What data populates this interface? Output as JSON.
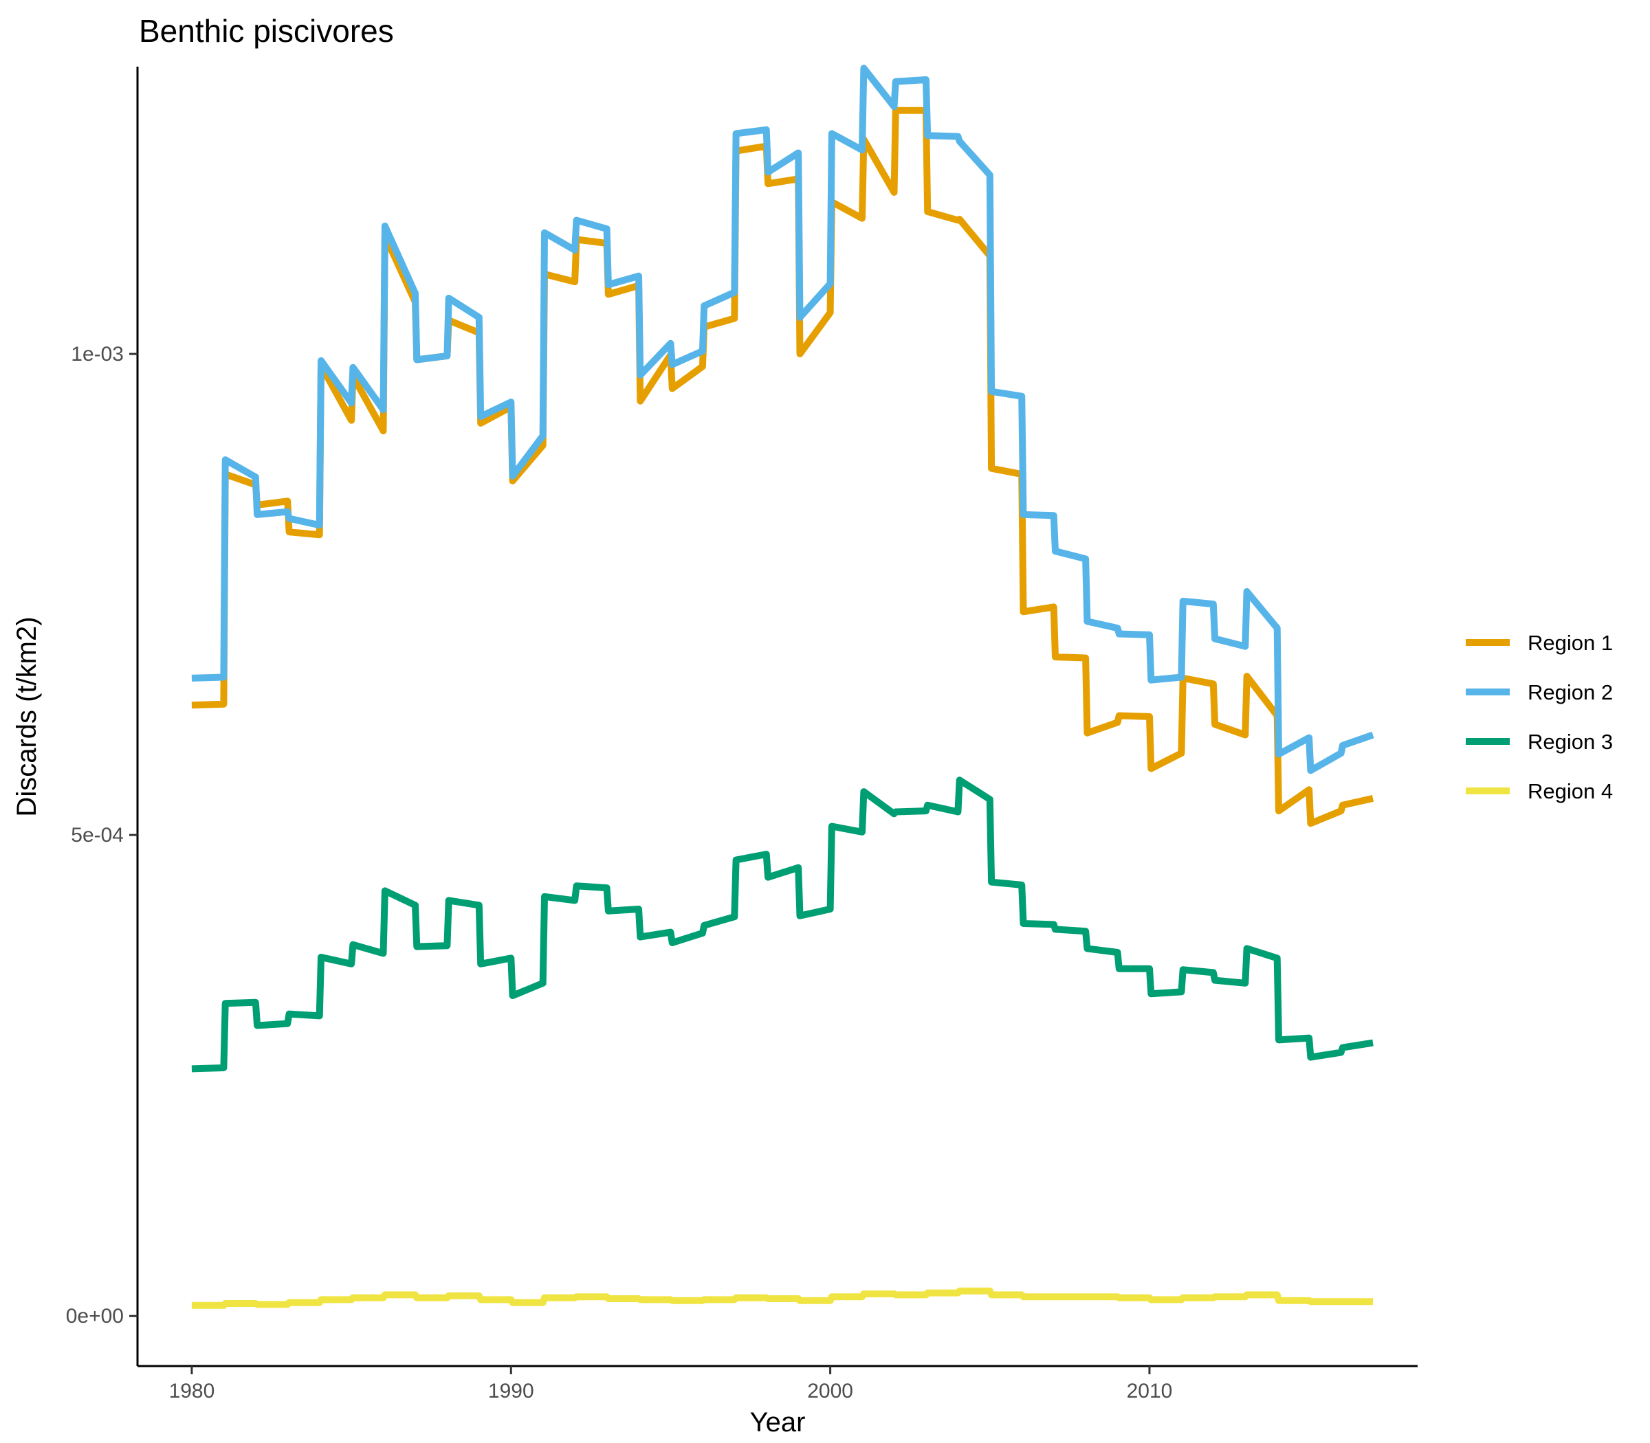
{
  "chart_data": {
    "type": "line",
    "title": "Benthic piscivores",
    "xlabel": "Year",
    "ylabel": "Discards (t/km2)",
    "xlim": [
      1978.3,
      2018.4
    ],
    "ylim": [
      -5.199e-05,
      0.0012986
    ],
    "xticks": [
      1980,
      1990,
      2000,
      2010
    ],
    "xtick_labels": [
      "1980",
      "1990",
      "2000",
      "2010"
    ],
    "yticks": [
      0,
      0.0005,
      0.001
    ],
    "ytick_labels": [
      "0e+00",
      "5e-04",
      "1e-03"
    ],
    "grid": false,
    "legend_position": "right",
    "series": [
      {
        "name": "Region 1",
        "color": "#E69F00",
        "x": [
          1980.0,
          1981.0,
          1981.05,
          1982.0,
          1982.05,
          1983.0,
          1983.05,
          1984.0,
          1984.05,
          1985.0,
          1985.05,
          1986.0,
          1986.05,
          1987.0,
          1987.05,
          1988.0,
          1988.05,
          1989.0,
          1989.05,
          1990.0,
          1990.05,
          1991.0,
          1991.05,
          1992.0,
          1992.05,
          1993.0,
          1993.05,
          1994.0,
          1994.05,
          1995.0,
          1995.05,
          1996.0,
          1996.05,
          1997.0,
          1997.05,
          1998.0,
          1998.05,
          1999.0,
          1999.05,
          2000.0,
          2000.05,
          2001.0,
          2001.05,
          2002.0,
          2002.05,
          2003.0,
          2003.05,
          2004.0,
          2004.05,
          2005.0,
          2005.05,
          2006.0,
          2006.05,
          2007.0,
          2007.05,
          2008.0,
          2008.05,
          2009.0,
          2009.05,
          2010.0,
          2010.05,
          2011.0,
          2011.05,
          2012.0,
          2012.05,
          2013.0,
          2013.05,
          2014.0,
          2014.05,
          2015.0,
          2015.05,
          2016.0,
          2016.05,
          2017.0
        ],
        "values": [
          0.000635,
          0.000636,
          0.000875,
          0.000864,
          0.000843,
          0.000847,
          0.000815,
          0.000812,
          0.000988,
          0.000931,
          0.000977,
          0.00092,
          0.001123,
          0.001054,
          0.000994,
          0.000998,
          0.001035,
          0.001022,
          0.000928,
          0.000945,
          0.000868,
          0.000905,
          0.001083,
          0.001075,
          0.001119,
          0.001115,
          0.001062,
          0.001071,
          0.000951,
          0.000999,
          0.000964,
          0.000987,
          0.001028,
          0.001037,
          0.001211,
          0.001216,
          0.001177,
          0.001182,
          0.001,
          0.001043,
          0.001158,
          0.001141,
          0.001223,
          0.001168,
          0.001253,
          0.001253,
          0.001148,
          0.001139,
          0.00114,
          0.001102,
          0.000881,
          0.000875,
          0.000732,
          0.000737,
          0.000685,
          0.000684,
          0.000606,
          0.000617,
          0.000624,
          0.000623,
          0.000569,
          0.000585,
          0.000663,
          0.000657,
          0.000615,
          0.000604,
          0.000665,
          0.000624,
          0.000525,
          0.000547,
          0.000512,
          0.000525,
          0.000531,
          0.000538
        ]
      },
      {
        "name": "Region 2",
        "color": "#56B4E9",
        "x": [
          1980.0,
          1981.0,
          1981.05,
          1982.0,
          1982.05,
          1983.0,
          1983.05,
          1984.0,
          1984.05,
          1985.0,
          1985.05,
          1986.0,
          1986.05,
          1987.0,
          1987.05,
          1988.0,
          1988.05,
          1989.0,
          1989.05,
          1990.0,
          1990.05,
          1991.0,
          1991.05,
          1992.0,
          1992.05,
          1993.0,
          1993.05,
          1994.0,
          1994.05,
          1995.0,
          1995.05,
          1996.0,
          1996.05,
          1997.0,
          1997.05,
          1998.0,
          1998.05,
          1999.0,
          1999.05,
          2000.0,
          2000.05,
          2001.0,
          2001.05,
          2002.0,
          2002.05,
          2003.0,
          2003.05,
          2004.0,
          2004.05,
          2005.0,
          2005.05,
          2006.0,
          2006.05,
          2007.0,
          2007.05,
          2008.0,
          2008.05,
          2009.0,
          2009.05,
          2010.0,
          2010.05,
          2011.0,
          2011.05,
          2012.0,
          2012.05,
          2013.0,
          2013.05,
          2014.0,
          2014.05,
          2015.0,
          2015.05,
          2016.0,
          2016.05,
          2017.0
        ],
        "values": [
          0.000663,
          0.000664,
          0.00089,
          0.000872,
          0.000833,
          0.000836,
          0.000829,
          0.000822,
          0.000993,
          0.000949,
          0.000986,
          0.000942,
          0.001133,
          0.001063,
          0.000994,
          0.000998,
          0.001058,
          0.001038,
          0.000935,
          0.00095,
          0.000873,
          0.000915,
          0.001126,
          0.001108,
          0.001139,
          0.00113,
          0.001072,
          0.001081,
          0.000978,
          0.001011,
          0.000989,
          0.001003,
          0.00105,
          0.001064,
          0.001229,
          0.001233,
          0.001189,
          0.001209,
          0.001038,
          0.001073,
          0.001229,
          0.001212,
          0.001297,
          0.001257,
          0.001283,
          0.001285,
          0.001227,
          0.001226,
          0.001221,
          0.001186,
          0.000961,
          0.000956,
          0.000833,
          0.000832,
          0.000795,
          0.000787,
          0.000722,
          0.000715,
          0.000709,
          0.000708,
          0.000661,
          0.000664,
          0.000743,
          0.00074,
          0.000704,
          0.000696,
          0.000753,
          0.000715,
          0.000584,
          0.000601,
          0.000567,
          0.000585,
          0.000593,
          0.000604
        ]
      },
      {
        "name": "Region 3",
        "color": "#009E73",
        "x": [
          1980.0,
          1981.0,
          1981.05,
          1982.0,
          1982.05,
          1983.0,
          1983.05,
          1984.0,
          1984.05,
          1985.0,
          1985.05,
          1986.0,
          1986.05,
          1987.0,
          1987.05,
          1988.0,
          1988.05,
          1989.0,
          1989.05,
          1990.0,
          1990.05,
          1991.0,
          1991.05,
          1992.0,
          1992.05,
          1993.0,
          1993.05,
          1994.0,
          1994.05,
          1995.0,
          1995.05,
          1996.0,
          1996.05,
          1997.0,
          1997.05,
          1998.0,
          1998.05,
          1999.0,
          1999.05,
          2000.0,
          2000.05,
          2001.0,
          2001.05,
          2002.0,
          2002.05,
          2003.0,
          2003.05,
          2004.0,
          2004.05,
          2005.0,
          2005.05,
          2006.0,
          2006.05,
          2007.0,
          2007.05,
          2008.0,
          2008.05,
          2009.0,
          2009.05,
          2010.0,
          2010.05,
          2011.0,
          2011.05,
          2012.0,
          2012.05,
          2013.0,
          2013.05,
          2014.0,
          2014.05,
          2015.0,
          2015.05,
          2016.0,
          2016.05,
          2017.0
        ],
        "values": [
          0.000257,
          0.000258,
          0.000325,
          0.000326,
          0.000302,
          0.000304,
          0.000314,
          0.000312,
          0.000373,
          0.000366,
          0.000386,
          0.000377,
          0.000442,
          0.000427,
          0.000384,
          0.000385,
          0.000432,
          0.000427,
          0.000366,
          0.000372,
          0.000333,
          0.000346,
          0.000436,
          0.000432,
          0.000447,
          0.000445,
          0.000421,
          0.000423,
          0.000394,
          0.000399,
          0.000388,
          0.000398,
          0.000406,
          0.000415,
          0.000474,
          0.00048,
          0.000456,
          0.000466,
          0.000416,
          0.000423,
          0.000509,
          0.000503,
          0.000545,
          0.000522,
          0.000524,
          0.000525,
          0.000531,
          0.000524,
          0.000557,
          0.000537,
          0.000451,
          0.000448,
          0.000408,
          0.000407,
          0.000402,
          0.0004,
          0.000382,
          0.000378,
          0.000361,
          0.000361,
          0.000335,
          0.000337,
          0.00036,
          0.000357,
          0.000349,
          0.000346,
          0.000382,
          0.000372,
          0.000287,
          0.000289,
          0.000269,
          0.000274,
          0.000279,
          0.000284
        ]
      },
      {
        "name": "Region 4",
        "color": "#F0E442",
        "x": [
          1980.0,
          1981.0,
          1981.05,
          1982.0,
          1982.05,
          1983.0,
          1983.05,
          1984.0,
          1984.05,
          1985.0,
          1985.05,
          1986.0,
          1986.05,
          1987.0,
          1987.05,
          1988.0,
          1988.05,
          1989.0,
          1989.05,
          1990.0,
          1990.05,
          1991.0,
          1991.05,
          1992.0,
          1992.05,
          1993.0,
          1993.05,
          1994.0,
          1994.05,
          1995.0,
          1995.05,
          1996.0,
          1996.05,
          1997.0,
          1997.05,
          1998.0,
          1998.05,
          1999.0,
          1999.05,
          2000.0,
          2000.05,
          2001.0,
          2001.05,
          2002.0,
          2002.05,
          2003.0,
          2003.05,
          2004.0,
          2004.05,
          2005.0,
          2005.05,
          2006.0,
          2006.05,
          2007.0,
          2007.05,
          2008.0,
          2008.05,
          2009.0,
          2009.05,
          2010.0,
          2010.05,
          2011.0,
          2011.05,
          2012.0,
          2012.05,
          2013.0,
          2013.05,
          2014.0,
          2014.05,
          2015.0,
          2015.05,
          2016.0,
          2016.05,
          2017.0
        ],
        "values": [
          1.1e-05,
          1.1e-05,
          1.3e-05,
          1.3e-05,
          1.2e-05,
          1.2e-05,
          1.4e-05,
          1.4e-05,
          1.7e-05,
          1.7e-05,
          1.9e-05,
          1.9e-05,
          2.2e-05,
          2.2e-05,
          1.9e-05,
          1.9e-05,
          2.1e-05,
          2.1e-05,
          1.7e-05,
          1.7e-05,
          1.4e-05,
          1.4e-05,
          1.9e-05,
          1.9e-05,
          2e-05,
          2e-05,
          1.8e-05,
          1.8e-05,
          1.7e-05,
          1.7e-05,
          1.6e-05,
          1.6e-05,
          1.7e-05,
          1.7e-05,
          1.9e-05,
          1.9e-05,
          1.8e-05,
          1.8e-05,
          1.6e-05,
          1.6e-05,
          2e-05,
          2e-05,
          2.3e-05,
          2.3e-05,
          2.2e-05,
          2.2e-05,
          2.4e-05,
          2.4e-05,
          2.6e-05,
          2.6e-05,
          2.2e-05,
          2.2e-05,
          2e-05,
          2e-05,
          2e-05,
          2e-05,
          2e-05,
          2e-05,
          1.9e-05,
          1.9e-05,
          1.7e-05,
          1.7e-05,
          1.9e-05,
          1.9e-05,
          2e-05,
          2e-05,
          2.2e-05,
          2.2e-05,
          1.6e-05,
          1.6e-05,
          1.5e-05,
          1.5e-05,
          1.5e-05,
          1.5e-05
        ]
      }
    ]
  }
}
